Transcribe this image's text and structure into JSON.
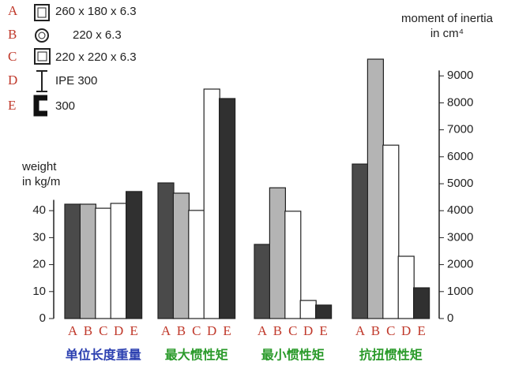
{
  "chart_data": {
    "type": "bar",
    "y_label": [
      "weight",
      "in kg/m"
    ],
    "y2_label": [
      "moment of inertia",
      "in cm⁴"
    ],
    "ylim": [
      0,
      44
    ],
    "yticks": [
      0,
      10,
      20,
      30,
      40
    ],
    "y2lim": [
      0,
      9200
    ],
    "y2ticks": [
      0,
      1000,
      2000,
      3000,
      4000,
      5000,
      6000,
      7000,
      8000,
      9000
    ],
    "series": [
      {
        "letter": "A",
        "name": "260 x 180 x 6.3",
        "color": "#4a4a4a"
      },
      {
        "letter": "B",
        "name": "220 x 6.3",
        "color": "#b4b4b4"
      },
      {
        "letter": "C",
        "name": "220 x 220 x 6.3",
        "color": "#ffffff"
      },
      {
        "letter": "D",
        "name": "IPE 300",
        "color": "#ffffff"
      },
      {
        "letter": "E",
        "name": "300",
        "color": "#303030"
      }
    ],
    "groups": [
      {
        "label": "单位长度重量",
        "axis": "y",
        "color": "#2b3fb0",
        "values": [
          42.4,
          42.4,
          40.9,
          42.7,
          47.1
        ]
      },
      {
        "label": "最大惯性矩",
        "axis": "y2",
        "color": "#2a9a2a",
        "values": [
          5030,
          4650,
          4010,
          8510,
          8160
        ]
      },
      {
        "label": "最小惯性矩",
        "axis": "y2",
        "color": "#2a9a2a",
        "values": [
          2750,
          4850,
          3980,
          670,
          500
        ]
      },
      {
        "label": "抗扭惯性矩",
        "axis": "y2",
        "color": "#2a9a2a",
        "values": [
          5730,
          9620,
          6430,
          2310,
          1140
        ]
      }
    ]
  }
}
